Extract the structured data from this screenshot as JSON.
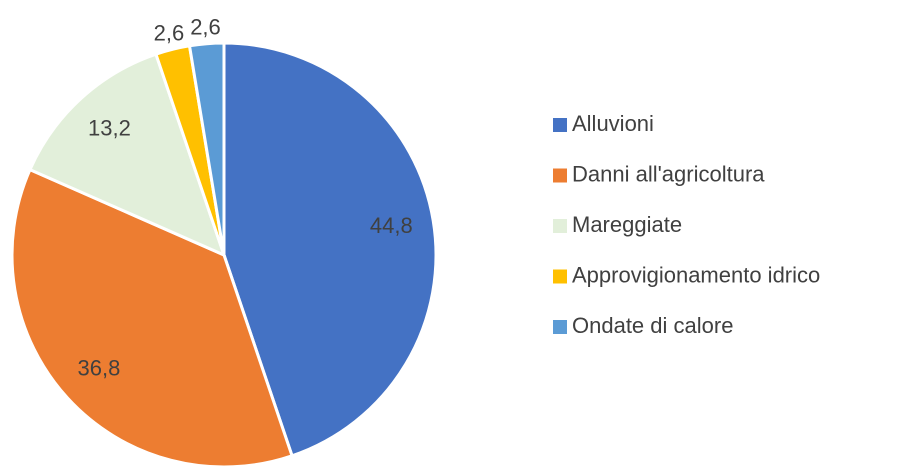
{
  "chart_data": {
    "type": "pie",
    "categories": [
      "Alluvioni",
      "Danni all'agricoltura",
      "Mareggiate",
      "Approvigionamento idrico",
      "Ondate di calore"
    ],
    "values": [
      44.8,
      36.8,
      13.2,
      2.6,
      2.6
    ],
    "value_labels": [
      "44,8",
      "36,8",
      "13,2",
      "2,6",
      "2,6"
    ],
    "colors": [
      "#4472c4",
      "#ed7d31",
      "#e2efda",
      "#ffc000",
      "#5b9bd5"
    ],
    "legend": "right"
  }
}
